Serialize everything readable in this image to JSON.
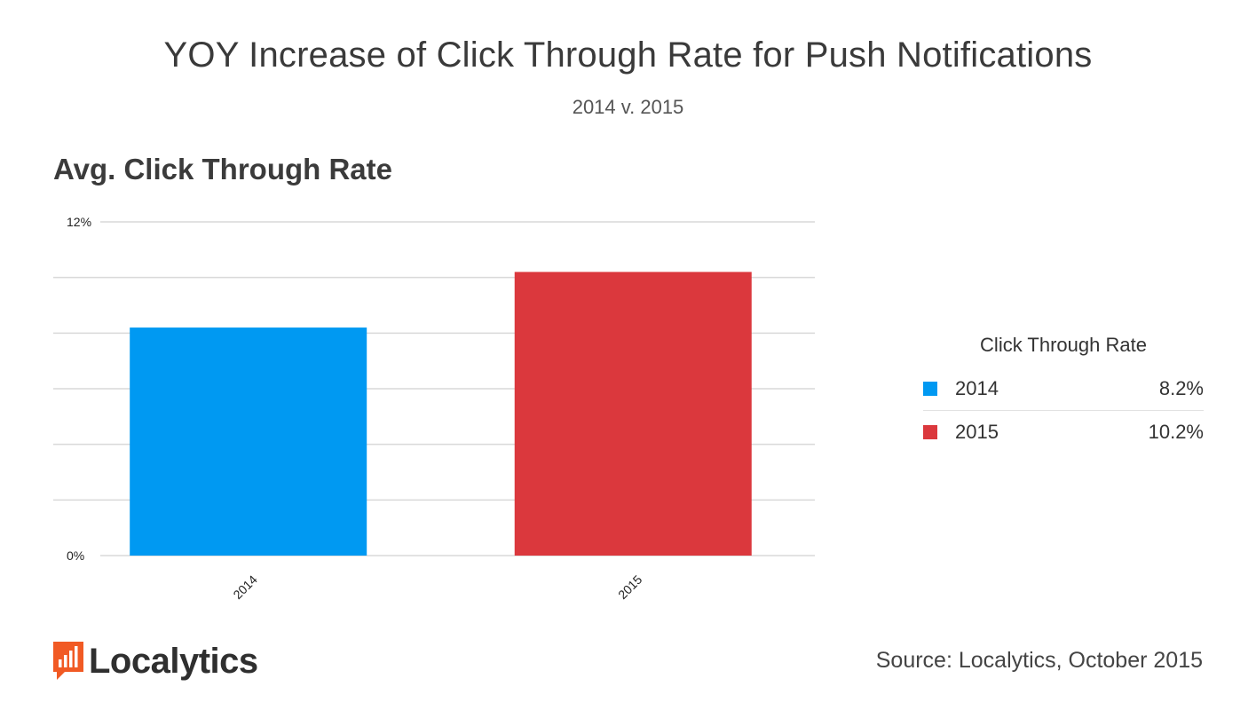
{
  "chart_data": {
    "type": "bar",
    "title": "YOY Increase of Click Through Rate for Push Notifications",
    "subtitle": "2014 v. 2015",
    "chart_heading": "Avg. Click Through Rate",
    "categories": [
      "2014",
      "2015"
    ],
    "values": [
      8.2,
      10.2
    ],
    "colors": [
      "#0099f2",
      "#db383d"
    ],
    "ylim": [
      0,
      12
    ],
    "ytick_labels": [
      "12%",
      "0%"
    ],
    "legend": {
      "title": "Click Through Rate",
      "entries": [
        {
          "label": "2014",
          "value": "8.2%",
          "color": "#0099f2"
        },
        {
          "label": "2015",
          "value": "10.2%",
          "color": "#db383d"
        }
      ]
    }
  },
  "branding": {
    "logo_text": "Localytics",
    "logo_color": "#f15a24",
    "source": "Source: Localytics, October 2015"
  }
}
